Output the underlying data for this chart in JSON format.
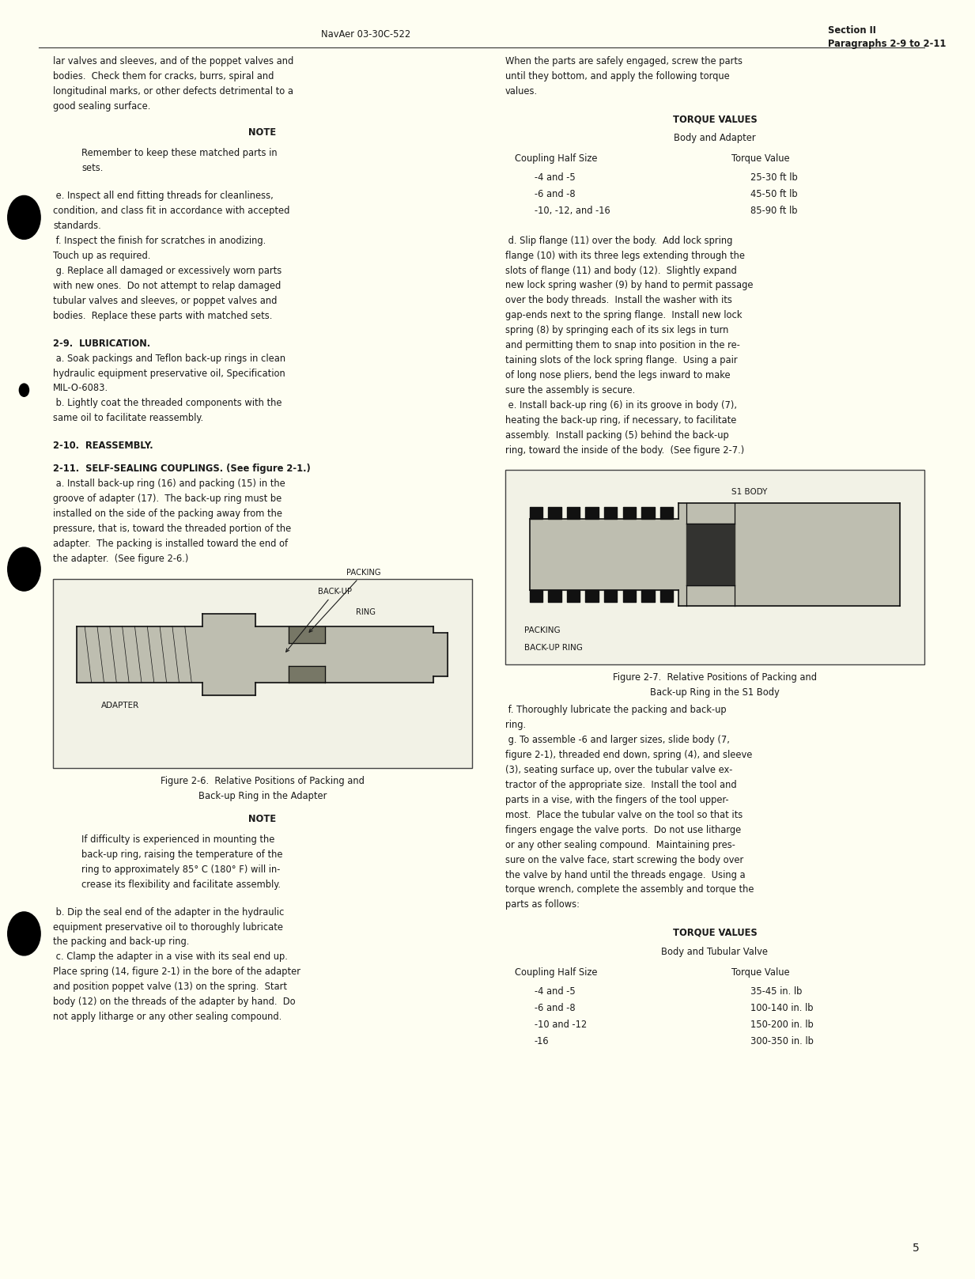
{
  "page_bg": "#FEFEF2",
  "header_left": "NavAer 03-30C-522",
  "header_right_line1": "Section II",
  "header_right_line2": "Paragraphs 2-9 to 2-11",
  "footer_page": "5",
  "torque_table1": {
    "title": "TORQUE VALUES",
    "subtitle": "Body and Adapter",
    "col1_header": "Coupling Half Size",
    "col2_header": "Torque Value",
    "rows": [
      [
        "-4 and -5",
        "25-30 ft lb"
      ],
      [
        "-6 and -8",
        "45-50 ft lb"
      ],
      [
        "-10, -12, and -16",
        "85-90 ft lb"
      ]
    ]
  },
  "torque_table2": {
    "title": "TORQUE VALUES",
    "subtitle": "Body and Tubular Valve",
    "col1_header": "Coupling Half Size",
    "col2_header": "Torque Value",
    "rows": [
      [
        "-4 and -5",
        "35-45 in. lb"
      ],
      [
        "-6 and -8",
        "100-140 in. lb"
      ],
      [
        "-10 and -12",
        "150-200 in. lb"
      ],
      [
        "-16",
        "300-350 in. lb"
      ]
    ]
  },
  "left_note2_text": [
    "If difficulty is experienced in mounting the",
    "back-up ring, raising the temperature of the",
    "ring to approximately 85° C (180° F) will in-",
    "crease its flexibility and facilitate assembly."
  ],
  "left_para_bc": [
    " b. Dip the seal end of the adapter in the hydraulic",
    "equipment preservative oil to thoroughly lubricate",
    "the packing and back-up ring.",
    " c. Clamp the adapter in a vise with its seal end up.",
    "Place spring (14, figure 2-1) in the bore of the adapter",
    "and position poppet valve (13) on the spring.  Start",
    "body (12) on the threads of the adapter by hand.  Do",
    "not apply litharge or any other sealing compound."
  ]
}
